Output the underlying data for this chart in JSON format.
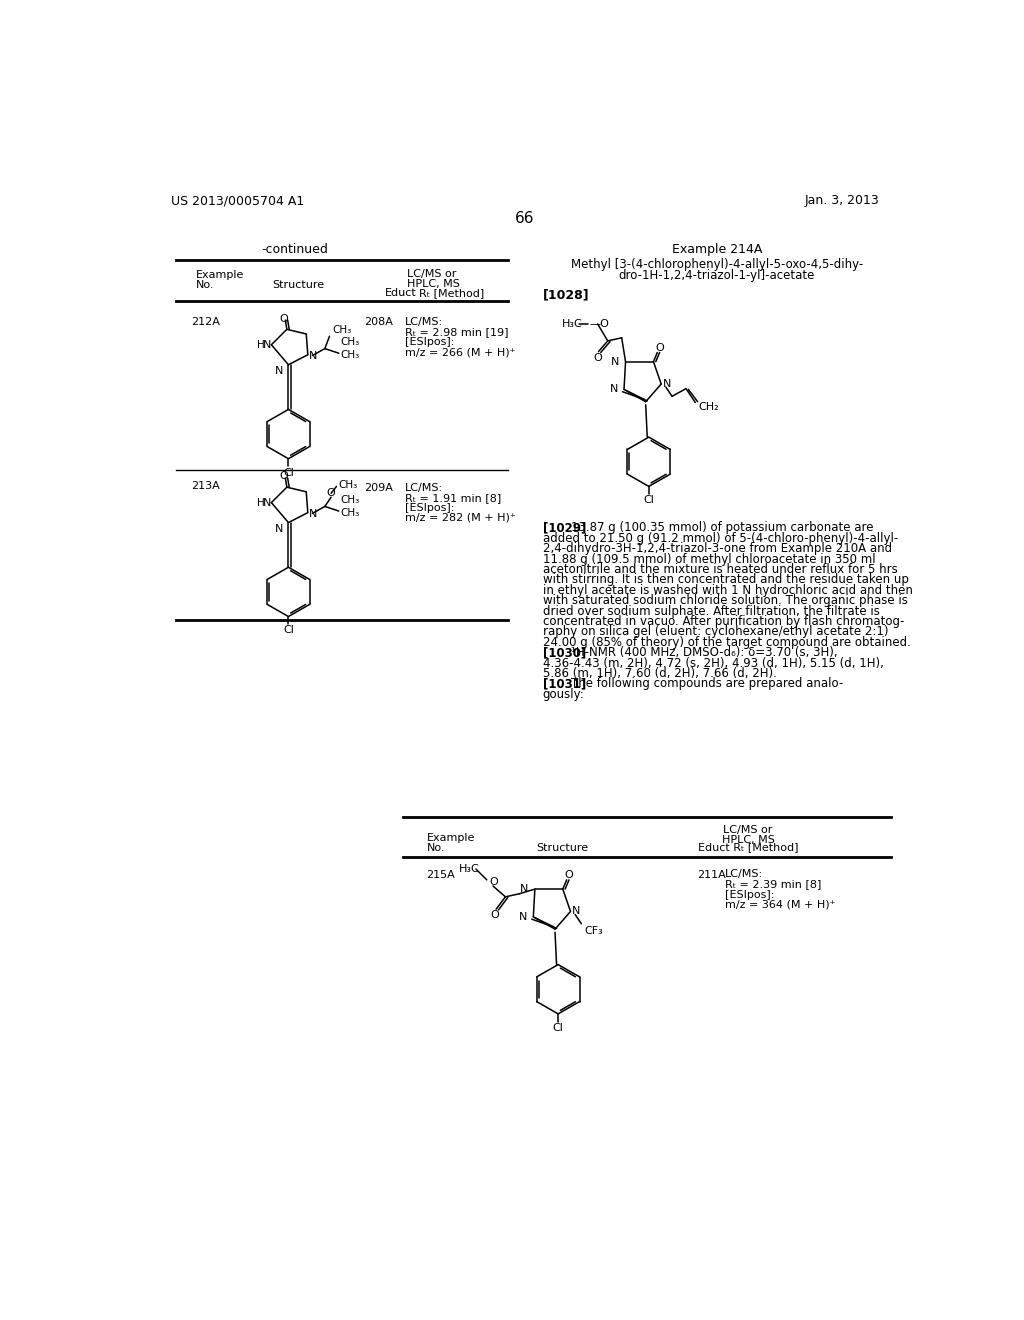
{
  "background_color": "#ffffff",
  "page_number": "66",
  "top_left_text": "US 2013/0005704 A1",
  "top_right_text": "Jan. 3, 2013",
  "continued_label": "-continued",
  "example_214A_title": "Example 214A",
  "example_214A_line1": "Methyl [3-(4-chlorophenyl)-4-allyl-5-oxo-4,5-dihy-",
  "example_214A_line2": "dro-1H-1,2,4-triazol-1-yl]-acetate",
  "tag_1028": "[1028]",
  "tag_1029": "[1029]",
  "tag_1030": "[1030]",
  "tag_1031": "[1031]",
  "para_1029_line1": "13.87 g (100.35 mmol) of potassium carbonate are",
  "para_1029_line2": "added to 21.50 g (91.2 mmol) of 5-(4-chloro-phenyl)-4-allyl-",
  "para_1029_line3": "2,4-dihydro-3H-1,2,4-triazol-3-one from Example 210A and",
  "para_1029_line4": "11.88 g (109.5 mmol) of methyl chloroacetate in 350 ml",
  "para_1029_line5": "acetonitrile and the mixture is heated under reflux for 5 hrs",
  "para_1029_line6": "with stirring. It is then concentrated and the residue taken up",
  "para_1029_line7": "in ethyl acetate is washed with 1 N hydrochloric acid and then",
  "para_1029_line8": "with saturated sodium chloride solution. The organic phase is",
  "para_1029_line9": "dried over sodium sulphate. After filtration, the filtrate is",
  "para_1029_line10": "concentrated in vacuo. After purification by flash chromatog-",
  "para_1029_line11": "raphy on silica gel (eluent: cyclohexane/ethyl acetate 2:1)",
  "para_1029_line12": "24.00 g (85% of theory) of the target compound are obtained.",
  "para_1030_line1": "¹H-NMR (400 MHz, DMSO-d₆): δ=3.70 (s, 3H),",
  "para_1030_line2": "4.36-4.43 (m, 2H), 4.72 (s, 2H), 4.93 (d, 1H), 5.15 (d, 1H),",
  "para_1030_line3": "5.86 (m, 1H), 7.60 (d, 2H), 7.66 (d, 2H).",
  "para_1031_line1": "The following compounds are prepared analo-",
  "para_1031_line2": "gously:"
}
